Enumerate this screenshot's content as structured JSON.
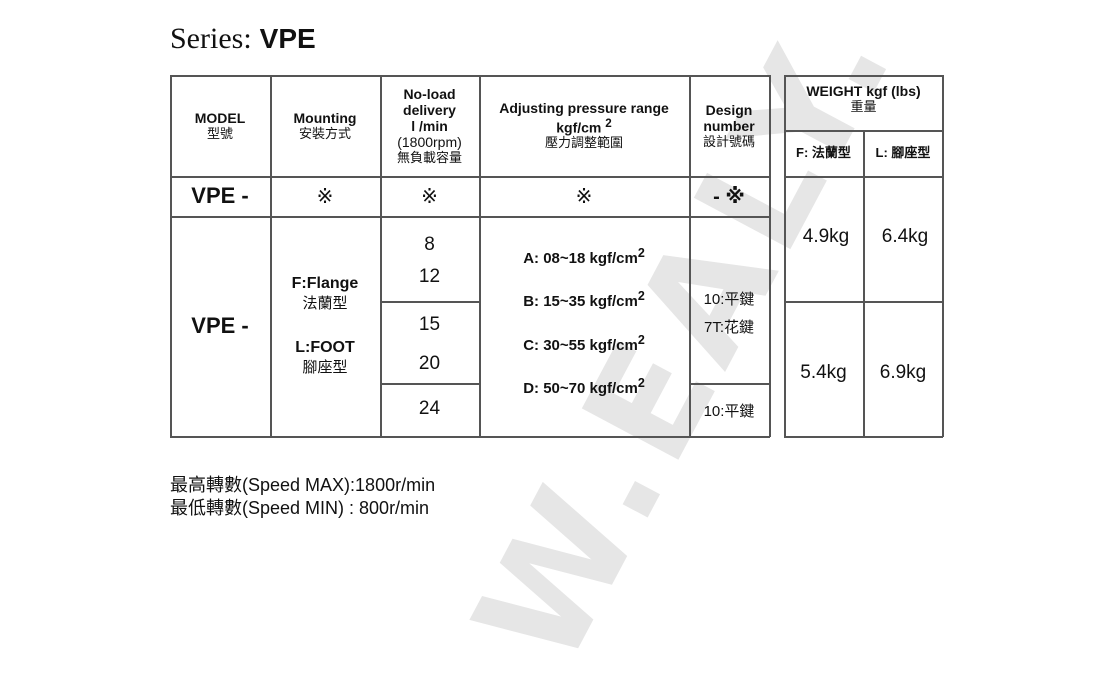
{
  "watermark": "W.EALY.",
  "series": {
    "label": "Series:",
    "name": "VPE"
  },
  "table": {
    "headers": {
      "model": {
        "en": "MODEL",
        "cn": "型號"
      },
      "mounting": {
        "en": "Mounting",
        "cn": "安裝方式"
      },
      "delivery": {
        "l1": "No-load",
        "l2": "delivery",
        "l3": "l /min",
        "l4": "(1800rpm)",
        "cn": "無負載容量"
      },
      "pressure": {
        "en": "Adjusting pressure range",
        "unit": "kgf/cm",
        "sup": "2",
        "cn": "壓力調整範圍"
      },
      "design": {
        "l1": "Design",
        "l2": "number",
        "cn": "設計號碼"
      }
    },
    "code_row": {
      "model": "VPE -",
      "mounting": "※",
      "delivery": "※",
      "pressure": "※",
      "design": "- ※"
    },
    "body": {
      "model": "VPE -",
      "mounting": {
        "f_en": "F:Flange",
        "f_cn": "法蘭型",
        "l_en": "L:FOOT",
        "l_cn": "腳座型"
      },
      "delivery": [
        "8",
        "12",
        "15",
        "20",
        "24"
      ],
      "pressure": [
        {
          "text": "A: 08~18 kgf/cm",
          "sup": "2"
        },
        {
          "text": "B: 15~35 kgf/cm",
          "sup": "2"
        },
        {
          "text": "C: 30~55 kgf/cm",
          "sup": "2"
        },
        {
          "text": "D: 50~70 kgf/cm",
          "sup": "2"
        }
      ],
      "design": {
        "a1": "10:平鍵",
        "a2": "7T:花鍵",
        "b": "10:平鍵"
      }
    }
  },
  "weight": {
    "header": {
      "en": "WEIGHT kgf (lbs)",
      "cn": "重量"
    },
    "sub": {
      "f": "F: 法蘭型",
      "l": "L: 腳座型"
    },
    "rows": [
      {
        "f": "4.9kg",
        "l": "6.4kg"
      },
      {
        "f": "5.4kg",
        "l": "6.9kg"
      }
    ]
  },
  "footer": {
    "max": "最高轉數(Speed MAX):1800r/min",
    "min": "最低轉數(Speed MIN) : 800r/min"
  }
}
